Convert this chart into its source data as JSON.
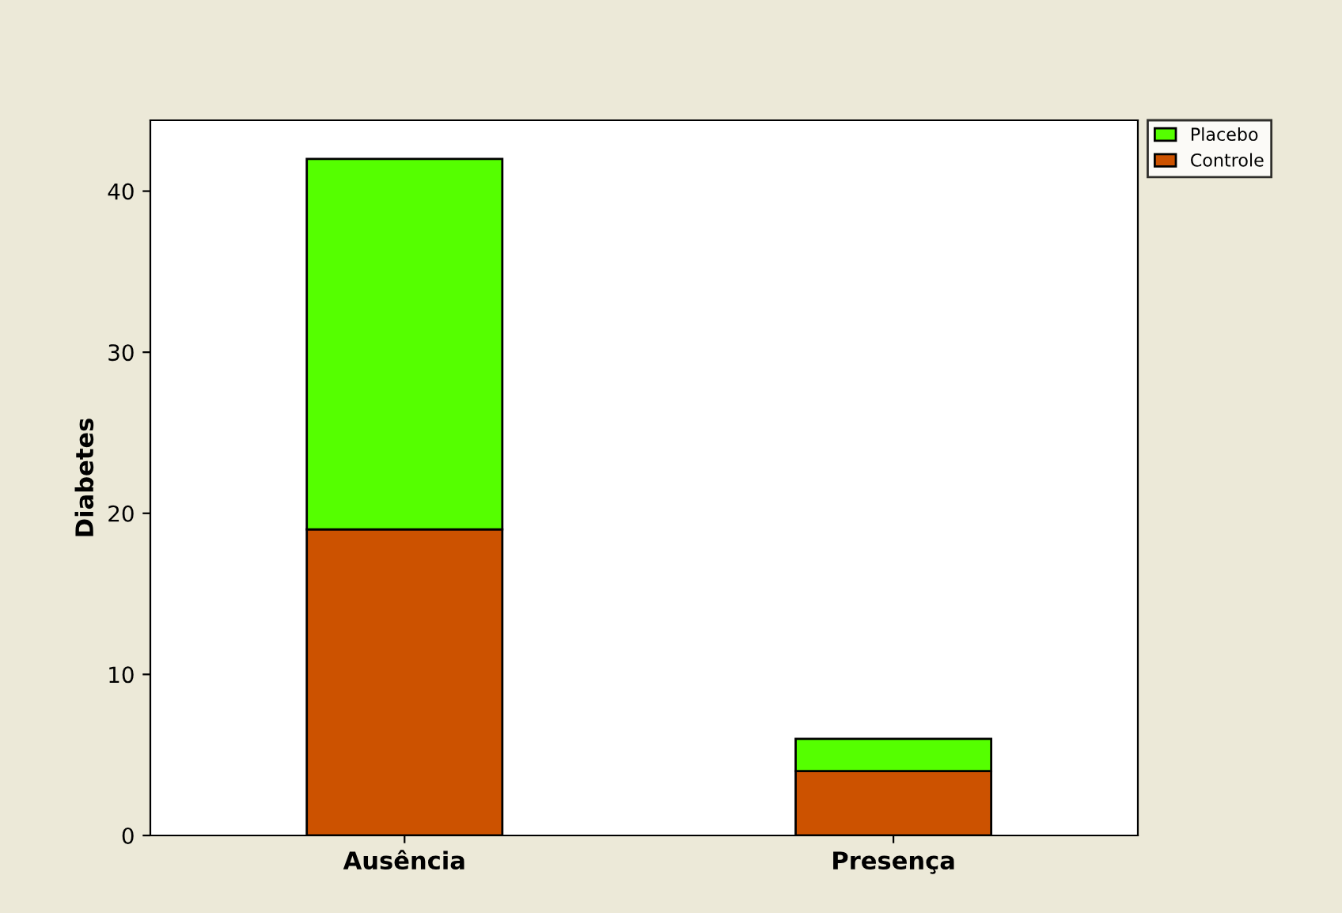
{
  "chart_data": {
    "type": "bar",
    "ylabel": "Diabetes",
    "categories": [
      "Ausência",
      "Presença"
    ],
    "stacked": true,
    "series": [
      {
        "name": "Controle",
        "color": "#cc5200",
        "values": [
          19,
          4
        ]
      },
      {
        "name": "Placebo",
        "color": "#55ff00",
        "values": [
          23,
          2
        ]
      }
    ],
    "ylim": [
      0,
      44.4
    ],
    "yticks": [
      0,
      10,
      20,
      30,
      40
    ],
    "grid": false,
    "legend": "top right"
  }
}
